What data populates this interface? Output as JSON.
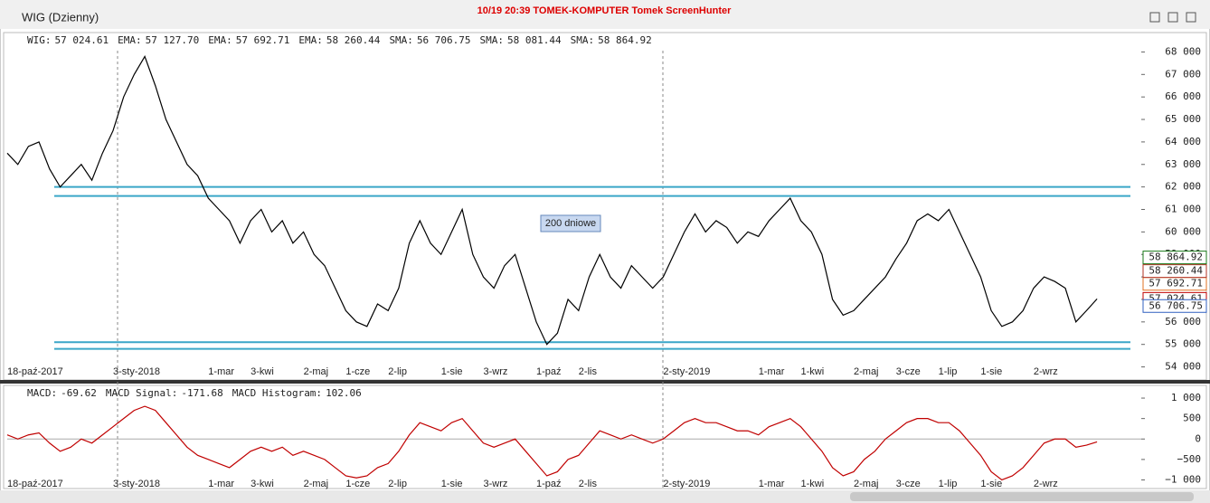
{
  "window": {
    "title": "WIG (Dzienny)",
    "watermark": "10/19 20:39 TOMEK-KOMPUTER Tomek ScreenHunter",
    "annotation": "200 dniowe"
  },
  "chart_data": [
    {
      "type": "line",
      "indicators": [
        {
          "name": "WIG:",
          "value": 57024.61,
          "value_label": "57 024.61",
          "color": "#c00000",
          "price_tag": true
        },
        {
          "name": "EMA:",
          "value": 57127.7,
          "value_label": "57 127.70",
          "color": "#c00000",
          "price_tag": false
        },
        {
          "name": "EMA:",
          "value": 57692.71,
          "value_label": "57 692.71",
          "color": "#e07020",
          "price_tag": true
        },
        {
          "name": "EMA:",
          "value": 58260.44,
          "value_label": "58 260.44",
          "color": "#b03020",
          "price_tag": true
        },
        {
          "name": "SMA:",
          "value": 56706.75,
          "value_label": "56 706.75",
          "color": "#3060c0",
          "price_tag": true
        },
        {
          "name": "SMA:",
          "value": 58081.44,
          "value_label": "58 081.44",
          "color": "#2e8b2e",
          "price_tag": false
        },
        {
          "name": "SMA:",
          "value": 58864.92,
          "value_label": "58 864.92",
          "color": "#1a7a1a",
          "price_tag": true
        }
      ],
      "categories": [
        "18-paź-2017",
        null,
        null,
        null,
        null,
        null,
        null,
        null,
        null,
        null,
        "3-sty-2018",
        null,
        null,
        null,
        null,
        null,
        null,
        null,
        null,
        "1-mar",
        null,
        null,
        null,
        "3-kwi",
        null,
        null,
        null,
        null,
        "2-maj",
        null,
        null,
        null,
        "1-cze",
        null,
        null,
        null,
        "2-lip",
        null,
        null,
        null,
        null,
        "1-sie",
        null,
        null,
        null,
        "3-wrz",
        null,
        null,
        null,
        null,
        "1-paź",
        null,
        null,
        null,
        "2-lis",
        null,
        null,
        null,
        null,
        null,
        null,
        null,
        "2-sty-2019",
        null,
        null,
        null,
        null,
        null,
        null,
        null,
        null,
        "1-mar",
        null,
        null,
        null,
        "1-kwi",
        null,
        null,
        null,
        null,
        "2-maj",
        null,
        null,
        null,
        "3-cze",
        null,
        null,
        null,
        "1-lip",
        null,
        null,
        null,
        "1-sie",
        null,
        null,
        null,
        null,
        "2-wrz",
        null,
        null,
        null,
        null,
        null,
        null
      ],
      "series": [
        {
          "name": "WIG",
          "color": "#000000",
          "values": [
            63500,
            63000,
            63800,
            64000,
            62800,
            62000,
            62500,
            63000,
            62300,
            63500,
            64500,
            66000,
            67000,
            67800,
            66500,
            65000,
            64000,
            63000,
            62500,
            61500,
            61000,
            60500,
            59500,
            60500,
            61000,
            60000,
            60500,
            59500,
            60000,
            59000,
            58500,
            57500,
            56500,
            56000,
            55800,
            56800,
            56500,
            57500,
            59500,
            60500,
            59500,
            59000,
            60000,
            61000,
            59000,
            58000,
            57500,
            58500,
            59000,
            57500,
            56000,
            55000,
            55500,
            57000,
            56500,
            58000,
            59000,
            58000,
            57500,
            58500,
            58000,
            57500,
            58000,
            59000,
            60000,
            60800,
            60000,
            60500,
            60200,
            59500,
            60000,
            59800,
            60500,
            61000,
            61500,
            60500,
            60000,
            59000,
            57000,
            56300,
            56500,
            57000,
            57500,
            58000,
            58800,
            59500,
            60500,
            60800,
            60500,
            61000,
            60000,
            59000,
            58000,
            56500,
            55800,
            56000,
            56500,
            57500,
            58000,
            57800,
            57500,
            56000,
            56500,
            57024.61
          ]
        }
      ],
      "levels": [
        62000,
        61600,
        55100,
        54800
      ],
      "level_color": "#3aa6c8",
      "ylim": [
        53500,
        68500
      ],
      "yticks": [
        {
          "value": 54000,
          "label": "54 000"
        },
        {
          "value": 55000,
          "label": "55 000"
        },
        {
          "value": 56000,
          "label": "56 000"
        },
        {
          "value": 57000,
          "label": "57 000"
        },
        {
          "value": 58000,
          "label": "58 000"
        },
        {
          "value": 59000,
          "label": "59 000"
        },
        {
          "value": 60000,
          "label": "60 000"
        },
        {
          "value": 61000,
          "label": "61 000"
        },
        {
          "value": 62000,
          "label": "62 000"
        },
        {
          "value": 63000,
          "label": "63 000"
        },
        {
          "value": 64000,
          "label": "64 000"
        },
        {
          "value": 65000,
          "label": "65 000"
        },
        {
          "value": 66000,
          "label": "66 000"
        },
        {
          "value": 67000,
          "label": "67 000"
        },
        {
          "value": 68000,
          "label": "68 000"
        }
      ]
    },
    {
      "type": "line",
      "indicators": [
        {
          "name": "MACD:",
          "value_label": "-69.62",
          "color": "#c00000"
        },
        {
          "name": "MACD Signal:",
          "value_label": "-171.68",
          "color": "#e07020"
        },
        {
          "name": "MACD Histogram:",
          "value_label": "102.06",
          "color": "#6a8a00"
        }
      ],
      "categories": [
        "18-paź-2017",
        null,
        null,
        null,
        null,
        null,
        null,
        null,
        null,
        null,
        "3-sty-2018",
        null,
        null,
        null,
        null,
        null,
        null,
        null,
        null,
        "1-mar",
        null,
        null,
        null,
        "3-kwi",
        null,
        null,
        null,
        null,
        "2-maj",
        null,
        null,
        null,
        "1-cze",
        null,
        null,
        null,
        "2-lip",
        null,
        null,
        null,
        null,
        "1-sie",
        null,
        null,
        null,
        "3-wrz",
        null,
        null,
        null,
        null,
        "1-paź",
        null,
        null,
        null,
        "2-lis",
        null,
        null,
        null,
        null,
        null,
        null,
        null,
        "2-sty-2019",
        null,
        null,
        null,
        null,
        null,
        null,
        null,
        null,
        "1-mar",
        null,
        null,
        null,
        "1-kwi",
        null,
        null,
        null,
        null,
        "2-maj",
        null,
        null,
        null,
        "3-cze",
        null,
        null,
        null,
        "1-lip",
        null,
        null,
        null,
        "1-sie",
        null,
        null,
        null,
        null,
        "2-wrz",
        null,
        null,
        null,
        null,
        null,
        null
      ],
      "series": [
        {
          "name": "MACD",
          "color": "#c00000",
          "values": [
            100,
            0,
            100,
            150,
            -100,
            -300,
            -200,
            0,
            -100,
            100,
            300,
            500,
            700,
            800,
            700,
            400,
            100,
            -200,
            -400,
            -500,
            -600,
            -700,
            -500,
            -300,
            -200,
            -300,
            -200,
            -400,
            -300,
            -400,
            -500,
            -700,
            -900,
            -950,
            -900,
            -700,
            -600,
            -300,
            100,
            400,
            300,
            200,
            400,
            500,
            200,
            -100,
            -200,
            -100,
            0,
            -300,
            -600,
            -900,
            -800,
            -500,
            -400,
            -100,
            200,
            100,
            0,
            100,
            0,
            -100,
            0,
            200,
            400,
            500,
            400,
            400,
            300,
            200,
            200,
            100,
            300,
            400,
            500,
            300,
            0,
            -300,
            -700,
            -900,
            -800,
            -500,
            -300,
            0,
            200,
            400,
            500,
            500,
            400,
            400,
            200,
            -100,
            -400,
            -800,
            -1000,
            -900,
            -700,
            -400,
            -100,
            0,
            0,
            -200,
            -150,
            -69.62
          ]
        }
      ],
      "ylim": [
        -1100,
        1200
      ],
      "yticks": [
        {
          "value": 1000,
          "label": "1 000"
        },
        500,
        0,
        {
          "value": -500,
          "label": "−500"
        },
        {
          "value": -1000,
          "label": "−1 000"
        }
      ]
    }
  ]
}
